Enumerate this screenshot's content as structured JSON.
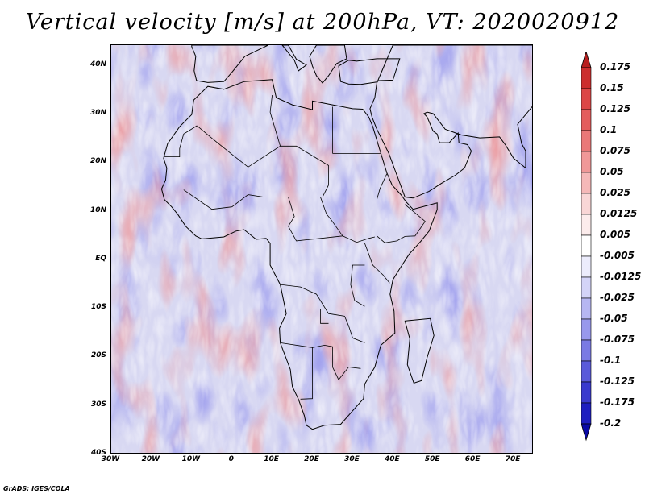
{
  "title": "Vertical velocity [m/s] at 200hPa, VT: 2020020912",
  "map": {
    "lat_labels": [
      "40N",
      "30N",
      "20N",
      "10N",
      "EQ",
      "10S",
      "20S",
      "30S",
      "40S"
    ],
    "lon_labels": [
      "30W",
      "20W",
      "10W",
      "0",
      "10E",
      "20E",
      "30E",
      "40E",
      "50E",
      "60E",
      "70E"
    ],
    "lat_range": [
      -40,
      45
    ],
    "lon_range": [
      -30,
      75
    ],
    "colors": {
      "sea_base": "#d8d8f2",
      "red": "#e04848",
      "blue": "#4848d8",
      "coast": "#000000"
    }
  },
  "colorbar": {
    "labels": [
      "0.175",
      "0.15",
      "0.125",
      "0.1",
      "0.075",
      "0.05",
      "0.025",
      "0.0125",
      "0.005",
      "-0.005",
      "-0.0125",
      "-0.025",
      "-0.05",
      "-0.075",
      "-0.1",
      "-0.125",
      "-0.175",
      "-0.2"
    ],
    "colors": [
      "#b81e1e",
      "#cc2e2e",
      "#dc4646",
      "#e45c5c",
      "#ea7878",
      "#f09898",
      "#f5b8b8",
      "#f9d6d6",
      "#fcecec",
      "#ffffff",
      "#ececfc",
      "#d4d4f8",
      "#b6b6f2",
      "#9898ec",
      "#7a7ae4",
      "#5a5ada",
      "#3a3ace",
      "#1e1ec0",
      "#0a0aa6"
    ]
  },
  "credit": "GrADS: IGES/COLA"
}
